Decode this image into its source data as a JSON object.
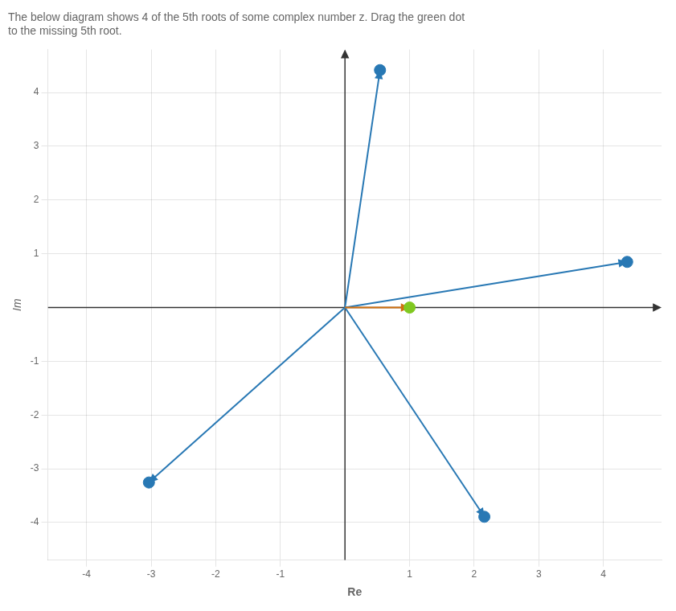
{
  "chart_data": {
    "type": "scatter",
    "title": [
      "The below diagram shows 4 of the 5th roots of some complex number z. Drag the green dot",
      "to the missing 5th root."
    ],
    "xlabel": "Re",
    "ylabel": "Im",
    "xlim": [
      -4.6,
      4.9
    ],
    "ylim": [
      -4.7,
      4.8
    ],
    "xticks": [
      -4,
      -3,
      -2,
      -1,
      1,
      2,
      3,
      4
    ],
    "yticks": [
      -4,
      -3,
      -2,
      -1,
      1,
      2,
      3,
      4
    ],
    "grid": true,
    "series": [
      {
        "type": "vector",
        "color": "#2878b4",
        "x": [
          0.5423,
          4.3682,
          2.1574,
          -3.0349
        ],
        "values": [
          4.4168,
          0.8491,
          -3.8921,
          -3.2545
        ]
      },
      {
        "type": "scatter",
        "marker": "circle",
        "color": "#2878b4",
        "x": [
          0.5423,
          4.3682,
          2.1574,
          -3.0349
        ],
        "values": [
          4.4168,
          0.8491,
          -3.8921,
          -3.2545
        ]
      },
      {
        "type": "vector",
        "color": "#d07010",
        "x": [
          1.0
        ],
        "values": [
          0.0
        ]
      },
      {
        "type": "scatter",
        "marker": "circle",
        "color": "#80c820",
        "x": [
          1.0
        ],
        "values": [
          0.0
        ]
      }
    ]
  }
}
